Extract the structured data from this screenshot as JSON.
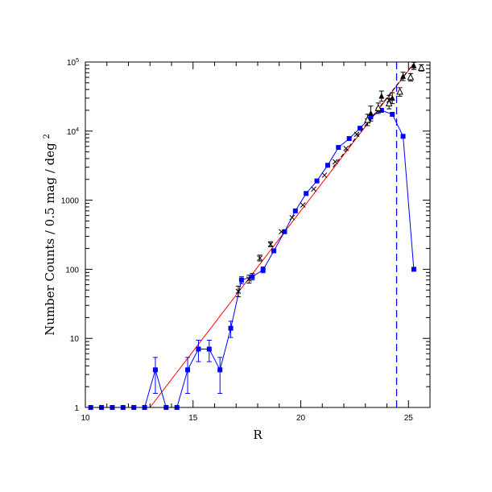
{
  "chart_data": {
    "type": "scatter",
    "title": "",
    "xlabel": "R",
    "ylabel": "Number Counts / 0.5 mag / deg²",
    "ylabel_parts": {
      "text": "Number Counts / 0.5 mag / deg",
      "exp": "2"
    },
    "xlim": [
      10,
      26
    ],
    "ylim": [
      1,
      100000
    ],
    "yscale": "log",
    "grid": false,
    "x_ticks": [
      10,
      15,
      20,
      25
    ],
    "x_tick_labels": [
      "10",
      "15",
      "20",
      "25"
    ],
    "y_ticks": [
      {
        "value": 1,
        "label": "1",
        "exp": ""
      },
      {
        "value": 10,
        "label": "10",
        "exp": ""
      },
      {
        "value": 100,
        "label": "100",
        "exp": ""
      },
      {
        "value": 1000,
        "label": "1000",
        "exp": ""
      },
      {
        "value": 10000,
        "label": "10",
        "exp": "4"
      },
      {
        "value": 100000,
        "label": "10",
        "exp": "5"
      }
    ],
    "series": [
      {
        "color": "#0000ff",
        "marker": "square",
        "points": [
          {
            "x": 10.25,
            "y": 1
          },
          {
            "x": 10.75,
            "y": 1
          },
          {
            "x": 11.25,
            "y": 1
          },
          {
            "x": 11.75,
            "y": 1
          },
          {
            "x": 12.25,
            "y": 1
          },
          {
            "x": 12.75,
            "y": 1
          },
          {
            "x": 13.25,
            "y": 3.5,
            "ylo": 1.6,
            "yhi": 5.3
          },
          {
            "x": 13.75,
            "y": 1
          },
          {
            "x": 14.25,
            "y": 1
          },
          {
            "x": 14.75,
            "y": 3.5,
            "ylo": 1.6,
            "yhi": 5.3
          },
          {
            "x": 15.25,
            "y": 7,
            "ylo": 4.6,
            "yhi": 9.4
          },
          {
            "x": 15.75,
            "y": 7,
            "ylo": 4.6,
            "yhi": 9.4
          },
          {
            "x": 16.25,
            "y": 3.5,
            "ylo": 1.6,
            "yhi": 5.3
          },
          {
            "x": 16.75,
            "y": 14,
            "ylo": 10.3,
            "yhi": 17.7
          },
          {
            "x": 17.25,
            "y": 70,
            "ylo": 62,
            "yhi": 78
          },
          {
            "x": 17.75,
            "y": 78,
            "ylo": 70,
            "yhi": 87
          },
          {
            "x": 18.25,
            "y": 98,
            "ylo": 89,
            "yhi": 108
          },
          {
            "x": 18.75,
            "y": 185
          },
          {
            "x": 19.25,
            "y": 350
          },
          {
            "x": 19.75,
            "y": 700
          },
          {
            "x": 20.25,
            "y": 1250
          },
          {
            "x": 20.75,
            "y": 1900
          },
          {
            "x": 21.25,
            "y": 3200
          },
          {
            "x": 21.75,
            "y": 5800
          },
          {
            "x": 22.25,
            "y": 7800
          },
          {
            "x": 22.75,
            "y": 11000
          },
          {
            "x": 23.25,
            "y": 16000
          },
          {
            "x": 23.75,
            "y": 20000
          },
          {
            "x": 24.25,
            "y": 17500
          },
          {
            "x": 24.75,
            "y": 8400
          },
          {
            "x": 25.25,
            "y": 100
          }
        ]
      },
      {
        "color": "#000000",
        "marker": "cross",
        "points": [
          {
            "x": 17.1,
            "y": 48,
            "ylo": 40,
            "yhi": 57
          },
          {
            "x": 17.6,
            "y": 72,
            "ylo": 63,
            "yhi": 82
          },
          {
            "x": 18.1,
            "y": 145,
            "ylo": 132,
            "yhi": 160
          },
          {
            "x": 18.6,
            "y": 230,
            "ylo": 212,
            "yhi": 250
          },
          {
            "x": 19.1,
            "y": 350
          },
          {
            "x": 19.6,
            "y": 560
          },
          {
            "x": 20.1,
            "y": 850
          },
          {
            "x": 20.6,
            "y": 1450
          },
          {
            "x": 21.1,
            "y": 2300
          },
          {
            "x": 21.6,
            "y": 3600
          },
          {
            "x": 22.1,
            "y": 5600
          },
          {
            "x": 22.6,
            "y": 9000
          },
          {
            "x": 23.1,
            "y": 14000
          },
          {
            "x": 23.6,
            "y": 20000
          },
          {
            "x": 24.1,
            "y": 28000,
            "ylo": 24000,
            "yhi": 33000
          }
        ]
      },
      {
        "color": "#000000",
        "marker": "filled-triangle",
        "points": [
          {
            "x": 23.25,
            "y": 18000,
            "ylo": 14000,
            "yhi": 23000
          },
          {
            "x": 23.75,
            "y": 32000,
            "ylo": 27000,
            "yhi": 38000
          },
          {
            "x": 24.25,
            "y": 30000,
            "ylo": 25000,
            "yhi": 36000
          },
          {
            "x": 24.75,
            "y": 62000,
            "ylo": 54000,
            "yhi": 71000
          },
          {
            "x": 25.25,
            "y": 88000,
            "ylo": 78000,
            "yhi": 99000
          }
        ]
      },
      {
        "color": "#000000",
        "marker": "open-triangle",
        "points": [
          {
            "x": 23.1,
            "y": 14500,
            "ylo": 12000,
            "yhi": 17500
          },
          {
            "x": 23.6,
            "y": 21500,
            "ylo": 18000,
            "yhi": 25500
          },
          {
            "x": 24.1,
            "y": 25000,
            "ylo": 21000,
            "yhi": 29500
          },
          {
            "x": 24.6,
            "y": 37000,
            "ylo": 32000,
            "yhi": 42500
          },
          {
            "x": 25.1,
            "y": 60000,
            "ylo": 53000,
            "yhi": 68000
          },
          {
            "x": 25.6,
            "y": 82000,
            "ylo": 74000,
            "yhi": 91000
          }
        ]
      }
    ],
    "fit_line": {
      "color": "#ff0000",
      "points": [
        {
          "x": 13.0,
          "y": 1
        },
        {
          "x": 25.3,
          "y": 100000
        }
      ]
    },
    "dashed_line": {
      "color": "#000000",
      "points": [
        {
          "x": 21.5,
          "y": 3000
        },
        {
          "x": 25.2,
          "y": 92000
        }
      ]
    },
    "limit_line": {
      "color": "#0000ff",
      "x": 24.45
    }
  }
}
